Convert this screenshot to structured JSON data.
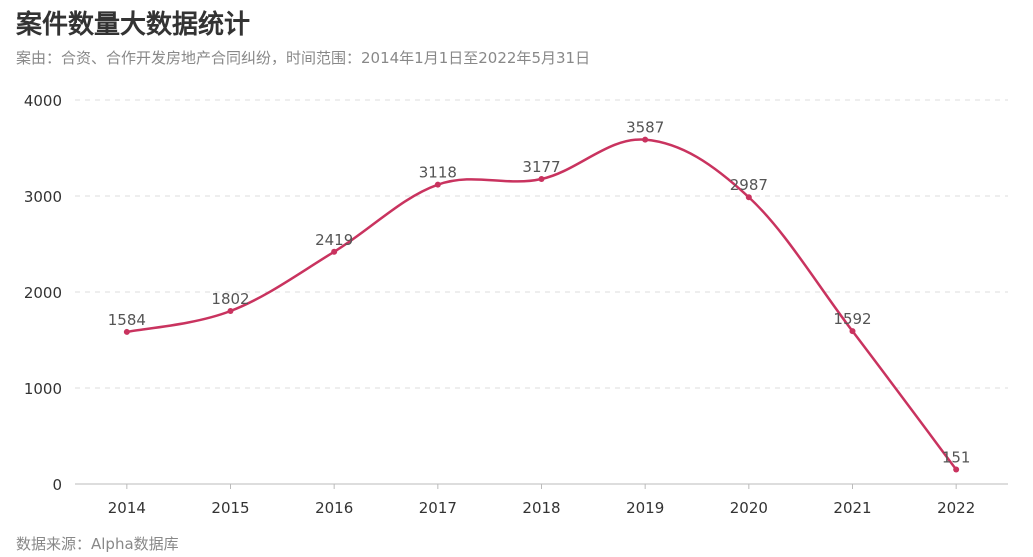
{
  "title": "案件数量大数据统计",
  "subtitle": "案由：合资、合作开发房地产合同纠纷，时间范围：2014年1月1日至2022年5月31日",
  "footer": "数据来源：Alpha数据库",
  "colors": {
    "line": "#c9335f",
    "grid": "#dddddd",
    "axis": "#bbbbbb"
  },
  "chart_data": {
    "type": "line",
    "smooth": true,
    "title": "案件数量大数据统计",
    "xlabel": "",
    "ylabel": "",
    "categories": [
      "2014",
      "2015",
      "2016",
      "2017",
      "2018",
      "2019",
      "2020",
      "2021",
      "2022"
    ],
    "values": [
      1584,
      1802,
      2419,
      3118,
      3177,
      3587,
      2987,
      1592,
      151
    ],
    "ylim": [
      0,
      4000
    ],
    "yticks": [
      0,
      1000,
      2000,
      3000,
      4000
    ],
    "grid": "horizontal dashed",
    "legend": "none"
  }
}
